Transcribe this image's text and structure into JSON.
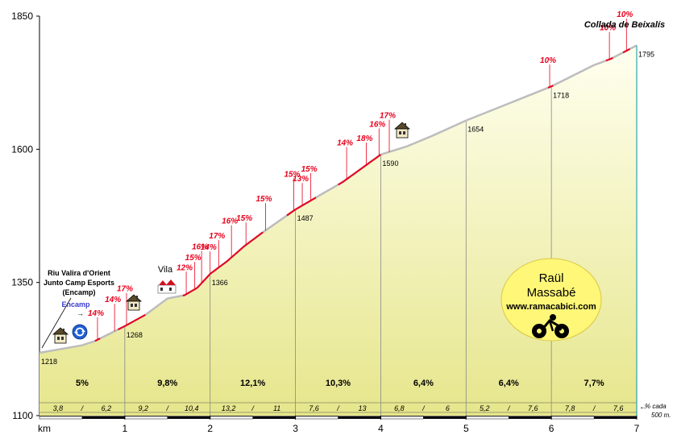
{
  "chart_data": {
    "type": "area",
    "title": "Collada de Beixalís",
    "xlabel": "km",
    "ylabel": "",
    "xlim": [
      0,
      7
    ],
    "ylim": [
      1100,
      1850
    ],
    "y_ticks": [
      "1100",
      "1350",
      "1600",
      "1850"
    ],
    "x_ticks": [
      "1",
      "2",
      "3",
      "4",
      "5",
      "6",
      "7"
    ],
    "grid": false,
    "profile": [
      {
        "x": 0,
        "y": 1218
      },
      {
        "x": 0.5,
        "y": 1232
      },
      {
        "x": 0.65,
        "y": 1240
      },
      {
        "x": 1,
        "y": 1268
      },
      {
        "x": 1.25,
        "y": 1290
      },
      {
        "x": 1.5,
        "y": 1320
      },
      {
        "x": 1.7,
        "y": 1326
      },
      {
        "x": 1.85,
        "y": 1340
      },
      {
        "x": 2,
        "y": 1366
      },
      {
        "x": 2.2,
        "y": 1390
      },
      {
        "x": 2.4,
        "y": 1418
      },
      {
        "x": 2.6,
        "y": 1442
      },
      {
        "x": 3,
        "y": 1487
      },
      {
        "x": 3.3,
        "y": 1515
      },
      {
        "x": 3.55,
        "y": 1538
      },
      {
        "x": 4,
        "y": 1590
      },
      {
        "x": 4.3,
        "y": 1605
      },
      {
        "x": 4.6,
        "y": 1625
      },
      {
        "x": 5,
        "y": 1654
      },
      {
        "x": 5.5,
        "y": 1686
      },
      {
        "x": 6,
        "y": 1718
      },
      {
        "x": 6.5,
        "y": 1758
      },
      {
        "x": 6.7,
        "y": 1770
      },
      {
        "x": 7,
        "y": 1795
      }
    ],
    "altitude_labels": [
      {
        "x": 0,
        "y": 1218,
        "text": "1218"
      },
      {
        "x": 1,
        "y": 1268,
        "text": "1268"
      },
      {
        "x": 2,
        "y": 1366,
        "text": "1366"
      },
      {
        "x": 3,
        "y": 1487,
        "text": "1487"
      },
      {
        "x": 4,
        "y": 1590,
        "text": "1590"
      },
      {
        "x": 5,
        "y": 1654,
        "text": "1654"
      },
      {
        "x": 6,
        "y": 1718,
        "text": "1718"
      },
      {
        "x": 7,
        "y": 1795,
        "text": "1795"
      }
    ],
    "segment_gradients": [
      "5%",
      "9,8%",
      "12,1%",
      "10,3%",
      "6,4%",
      "6,4%",
      "7,7%"
    ],
    "half_km_gradients": [
      [
        "3,8",
        "6,2"
      ],
      [
        "9,2",
        "10,4"
      ],
      [
        "13,2",
        "11"
      ],
      [
        "7,6",
        "13"
      ],
      [
        "6,8",
        "6"
      ],
      [
        "5,2",
        "7,6"
      ],
      [
        "7,8",
        "7,6"
      ]
    ],
    "steep_annotations": [
      {
        "x": 0.68,
        "text": "14%"
      },
      {
        "x": 0.88,
        "text": "14%"
      },
      {
        "x": 1.02,
        "text": "17%"
      },
      {
        "x": 1.72,
        "text": "12%"
      },
      {
        "x": 1.82,
        "text": "15%"
      },
      {
        "x": 1.9,
        "text": "16%"
      },
      {
        "x": 2.0,
        "text": "14%"
      },
      {
        "x": 2.1,
        "text": "17%"
      },
      {
        "x": 2.25,
        "text": "16%"
      },
      {
        "x": 2.42,
        "text": "15%"
      },
      {
        "x": 2.65,
        "text": "15%"
      },
      {
        "x": 2.98,
        "text": "15%"
      },
      {
        "x": 3.08,
        "text": "13%"
      },
      {
        "x": 3.18,
        "text": "15%"
      },
      {
        "x": 3.6,
        "text": "14%"
      },
      {
        "x": 3.83,
        "text": "18%"
      },
      {
        "x": 3.98,
        "text": "16%"
      },
      {
        "x": 4.1,
        "text": "17%"
      },
      {
        "x": 5.98,
        "text": "10%"
      },
      {
        "x": 6.68,
        "text": "10%"
      },
      {
        "x": 6.88,
        "text": "10%"
      }
    ],
    "place_labels": {
      "start_line1": "Riu Valira d'Orient",
      "start_line2": "Junto Camp Esports",
      "start_line3": "(Encamp)",
      "encamp": "Encamp",
      "vila": "Vila"
    },
    "footnote_line1": "% cada",
    "footnote_line2": "500 m.",
    "logo": {
      "name1": "Raül",
      "name2": "Massabé",
      "url": "www.ramacabici.com"
    },
    "colors": {
      "fill_top": "#fffff0",
      "fill_bottom": "#e6e68c",
      "profile_line": "#bdbdbd",
      "steep_line": "#e8001c",
      "logo_bg": "#fff777",
      "axis": "#000000"
    },
    "icons": [
      "house-icon",
      "roundabout-icon",
      "village-icon",
      "cyclist-icon"
    ]
  }
}
